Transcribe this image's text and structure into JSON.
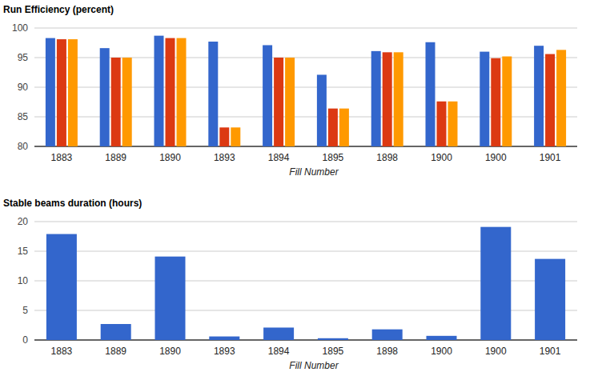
{
  "chart_data": [
    {
      "type": "bar",
      "title": "Run Efficiency (percent)",
      "xlabel": "Fill Number",
      "categories": [
        "1883",
        "1889",
        "1890",
        "1893",
        "1894",
        "1895",
        "1898",
        "1900",
        "1900",
        "1901"
      ],
      "series": [
        {
          "color": "#3366cc",
          "values": [
            98.3,
            96.6,
            98.7,
            97.7,
            97.1,
            92.1,
            96.1,
            97.6,
            96.0,
            97.0
          ]
        },
        {
          "color": "#dc3912",
          "values": [
            98.1,
            95.0,
            98.3,
            83.2,
            95.0,
            86.4,
            95.9,
            87.6,
            94.9,
            95.6
          ]
        },
        {
          "color": "#ff9900",
          "values": [
            98.1,
            95.0,
            98.3,
            83.2,
            95.0,
            86.4,
            95.9,
            87.6,
            95.2,
            96.3
          ]
        }
      ],
      "ylim": [
        80,
        100
      ],
      "yticks": [
        80,
        85,
        90,
        95,
        100
      ],
      "grid": true
    },
    {
      "type": "bar",
      "title": "Stable beams duration (hours)",
      "xlabel": "Fill Number",
      "categories": [
        "1883",
        "1889",
        "1890",
        "1893",
        "1894",
        "1895",
        "1898",
        "1900",
        "1900",
        "1901"
      ],
      "values": [
        17.9,
        2.7,
        14.1,
        0.6,
        2.1,
        0.3,
        1.8,
        0.7,
        19.1,
        13.7
      ],
      "color": "#3366cc",
      "ylim": [
        0,
        20
      ],
      "yticks": [
        0,
        5,
        10,
        15,
        20
      ],
      "grid": true
    }
  ]
}
